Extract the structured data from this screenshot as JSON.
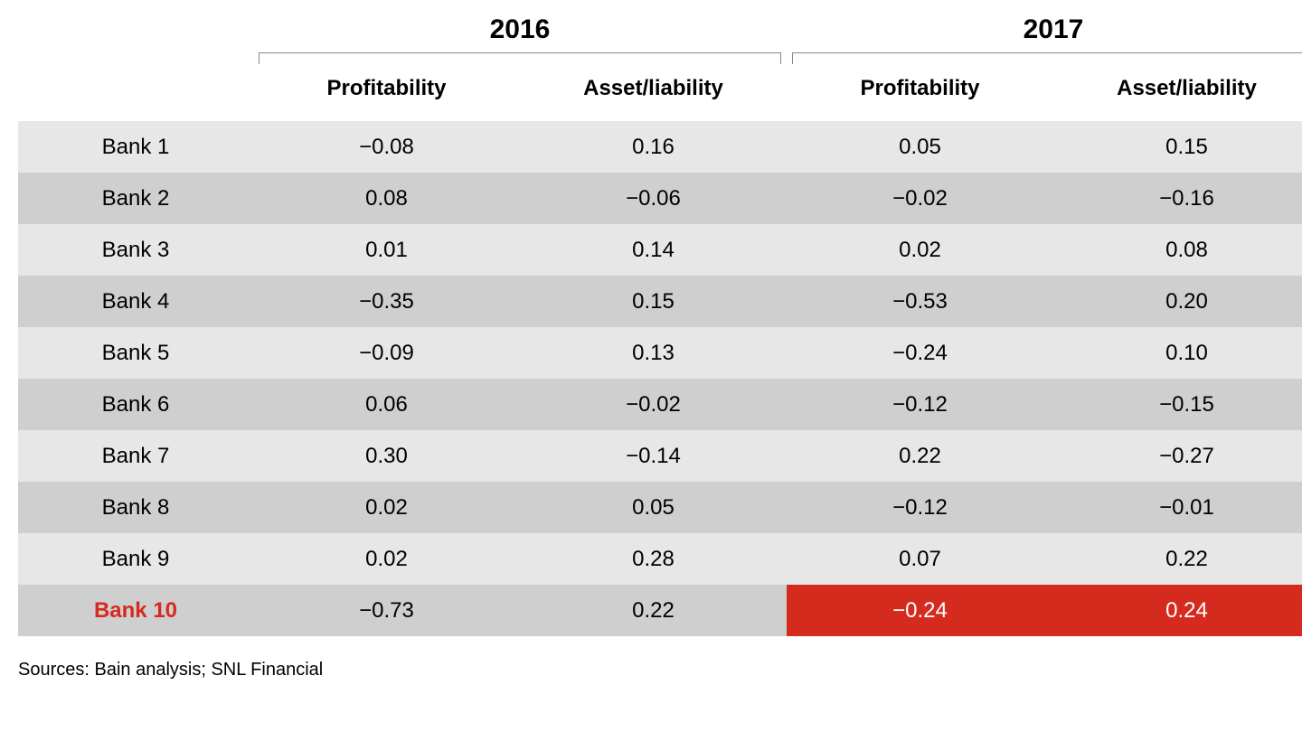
{
  "type": "table",
  "background_color": "#ffffff",
  "text_color": "#000000",
  "row_colors": {
    "odd": "#e7e7e7",
    "even": "#cfcfcf"
  },
  "highlight_color": "#d52b1e",
  "highlight_text_color": "#ffffff",
  "bracket_color": "#8a8a8a",
  "fonts": {
    "year_header_pt": 22,
    "sub_header_pt": 18,
    "cell_pt": 18,
    "sources_pt": 15
  },
  "year_headers": [
    "2016",
    "2017"
  ],
  "sub_headers": [
    "Profitability",
    "Asset/liability",
    "Profitability",
    "Asset/liability"
  ],
  "rows": [
    {
      "label": "Bank 1",
      "values": [
        "−0.08",
        "0.16",
        "0.05",
        "0.15"
      ]
    },
    {
      "label": "Bank 2",
      "values": [
        "0.08",
        "−0.06",
        "−0.02",
        "−0.16"
      ]
    },
    {
      "label": "Bank 3",
      "values": [
        "0.01",
        "0.14",
        "0.02",
        "0.08"
      ]
    },
    {
      "label": "Bank 4",
      "values": [
        "−0.35",
        "0.15",
        "−0.53",
        "0.20"
      ]
    },
    {
      "label": "Bank 5",
      "values": [
        "−0.09",
        "0.13",
        "−0.24",
        "0.10"
      ]
    },
    {
      "label": "Bank 6",
      "values": [
        "0.06",
        "−0.02",
        "−0.12",
        "−0.15"
      ]
    },
    {
      "label": "Bank 7",
      "values": [
        "0.30",
        "−0.14",
        "0.22",
        "−0.27"
      ]
    },
    {
      "label": "Bank 8",
      "values": [
        "0.02",
        "0.05",
        "−0.12",
        "−0.01"
      ]
    },
    {
      "label": "Bank 9",
      "values": [
        "0.02",
        "0.28",
        "0.07",
        "0.22"
      ]
    },
    {
      "label": "Bank 10",
      "values": [
        "−0.73",
        "0.22",
        "−0.24",
        "0.24"
      ],
      "highlight_label": true,
      "highlight_cells": [
        2,
        3
      ]
    }
  ],
  "sources_text": "Sources: Bain analysis; SNL Financial"
}
